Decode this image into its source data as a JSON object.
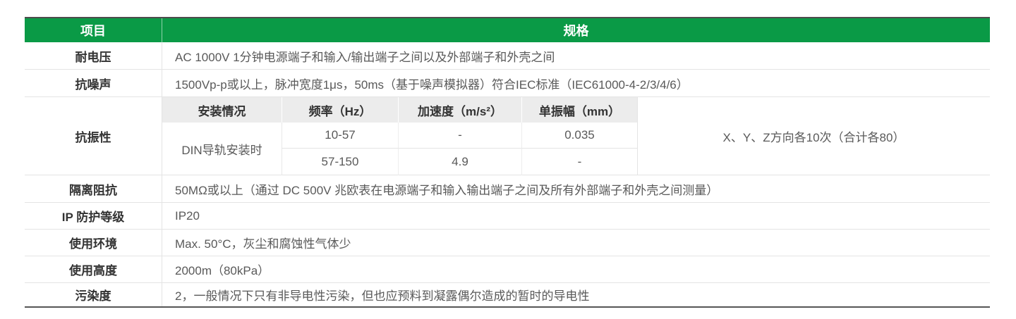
{
  "colors": {
    "header_green": "#0a9a46",
    "top_rule": "#4d4d4d",
    "bottom_rule": "#565656",
    "row_divider": "#e4e4e4",
    "nested_header_bg": "#ececec",
    "label_text": "#333333",
    "value_text": "#595959",
    "header_text": "#ffffff"
  },
  "table": {
    "header": {
      "item": "项目",
      "spec": "规格"
    },
    "rows": [
      {
        "label": "耐电压",
        "value": "AC 1000V 1分钟电源端子和输入/输出端子之间以及外部端子和外壳之间"
      },
      {
        "label": "抗噪声",
        "value": "1500Vp-p或以上，脉冲宽度1μs，50ms（基于噪声模拟器）符合IEC标准（IEC61000-4-2/3/4/6）"
      },
      {
        "label": "抗振性"
      },
      {
        "label": "隔离阻抗",
        "value": "50MΩ或以上（通过 DC 500V 兆欧表在电源端子和输入输出端子之间及所有外部端子和外壳之间测量）"
      },
      {
        "label": "IP 防护等级",
        "value": "IP20"
      },
      {
        "label": "使用环境",
        "value": "Max. 50°C，灰尘和腐蚀性气体少"
      },
      {
        "label": "使用高度",
        "value": "2000m（80kPa）"
      },
      {
        "label": "污染度",
        "value": "2，一般情况下只有非导电性污染，但也应预料到凝露偶尔造成的暂时的导电性"
      }
    ],
    "vibration": {
      "headers": [
        "安装情况",
        "频率（Hz）",
        "加速度（m/s²）",
        "单振幅（mm）"
      ],
      "mount": "DIN导轨安装时",
      "rows": [
        {
          "frequency": "10-57",
          "acceleration": "-",
          "amplitude": "0.035"
        },
        {
          "frequency": "57-150",
          "acceleration": "4.9",
          "amplitude": "-"
        }
      ],
      "note": "X、Y、Z方向各10次（合计各80）"
    }
  }
}
